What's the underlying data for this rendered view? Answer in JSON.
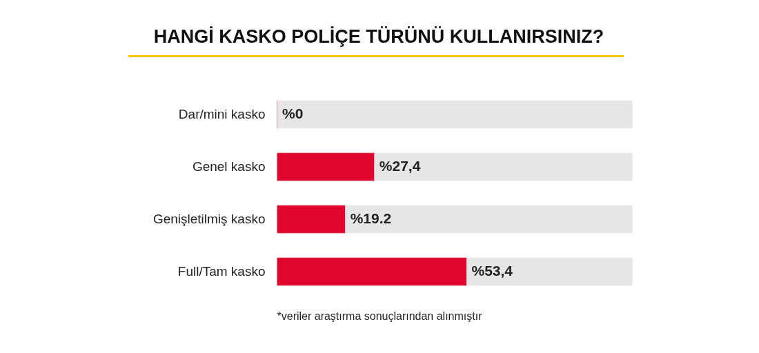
{
  "chart_data": {
    "type": "bar",
    "orientation": "horizontal",
    "stacked": true,
    "title": "HANGİ KASKO POLİÇE TÜRÜNÜ KULLANIRSINIZ?",
    "categories": [
      "Dar/mini kasko",
      "Genel kasko",
      "Genişletilmiş kasko",
      "Full/Tam kasko"
    ],
    "series": [
      {
        "color": "#e0062e",
        "values": [
          0,
          27.4,
          19.2,
          53.4
        ],
        "value_labels": [
          "%0",
          "%27,4",
          "%19.2",
          "%53,4"
        ]
      },
      {
        "color": "#e6e6e6",
        "values": [
          100,
          72.6,
          80.8,
          46.6
        ]
      }
    ],
    "xlim": [
      0,
      100
    ],
    "tick_labels": "y",
    "grid": false,
    "annotations": [
      "*veriler araştırma sonuçlarından alınmıştır"
    ]
  }
}
